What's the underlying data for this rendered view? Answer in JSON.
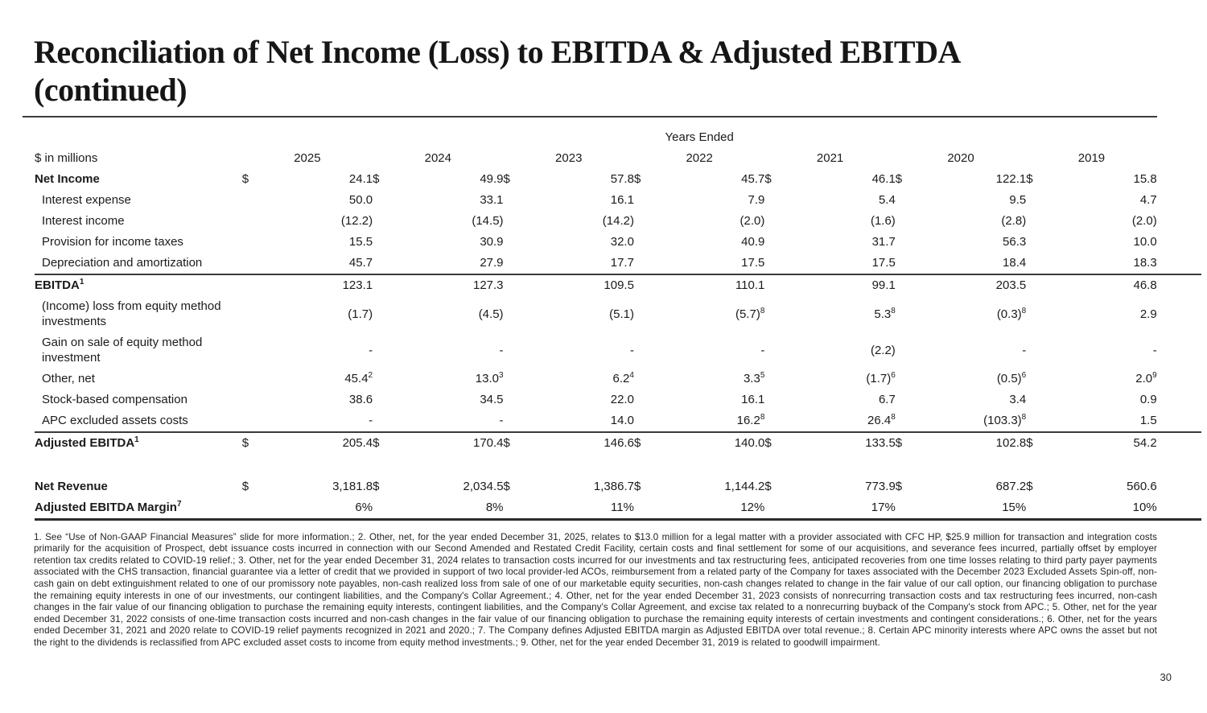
{
  "title": "Reconciliation of Net Income (Loss) to EBITDA & Adjusted EBITDA\n(continued)",
  "table": {
    "years_ended_label": "Years Ended",
    "unit_label": "$ in millions",
    "currency_symbol": "$",
    "years": [
      "2025",
      "2024",
      "2023",
      "2022",
      "2021",
      "2020",
      "2019"
    ],
    "rows": [
      {
        "label": "Net Income",
        "bold": true,
        "dollar": true,
        "values": [
          "24.1",
          "49.9",
          "57.8",
          "45.7",
          "46.1",
          "122.1",
          "15.8"
        ]
      },
      {
        "label": "Interest expense",
        "indent": true,
        "values": [
          "50.0",
          "33.1",
          "16.1",
          "7.9",
          "5.4",
          "9.5",
          "4.7"
        ]
      },
      {
        "label": "Interest income",
        "indent": true,
        "values": [
          "(12.2)",
          "(14.5)",
          "(14.2)",
          "(2.0)",
          "(1.6)",
          "(2.8)",
          "(2.0)"
        ]
      },
      {
        "label": "Provision for income taxes",
        "indent": true,
        "values": [
          "15.5",
          "30.9",
          "32.0",
          "40.9",
          "31.7",
          "56.3",
          "10.0"
        ]
      },
      {
        "label": "Depreciation and amortization",
        "indent": true,
        "rule_below": true,
        "values": [
          "45.7",
          "27.9",
          "17.7",
          "17.5",
          "17.5",
          "18.4",
          "18.3"
        ]
      },
      {
        "label": "EBITDA^1",
        "bold": true,
        "values": [
          "123.1",
          "127.3",
          "109.5",
          "110.1",
          "99.1",
          "203.5",
          "46.8"
        ]
      },
      {
        "label": "(Income) loss from equity method investments",
        "indent": true,
        "values": [
          "(1.7)",
          "(4.5)",
          "(5.1)",
          "(5.7)^8",
          "5.3^8",
          "(0.3)^8",
          "2.9"
        ]
      },
      {
        "label": "Gain on sale of equity method investment",
        "indent": true,
        "values": [
          "-",
          "-",
          "-",
          "-",
          "(2.2)",
          "-",
          "-"
        ]
      },
      {
        "label": "Other, net",
        "indent": true,
        "values": [
          "45.4^2",
          "13.0^3",
          "6.2^4",
          "3.3^5",
          "(1.7)^6",
          "(0.5)^6",
          "2.0^9"
        ]
      },
      {
        "label": "Stock-based compensation",
        "indent": true,
        "values": [
          "38.6",
          "34.5",
          "22.0",
          "16.1",
          "6.7",
          "3.4",
          "0.9"
        ]
      },
      {
        "label": "APC excluded assets costs",
        "indent": true,
        "rule_below": true,
        "values": [
          "-",
          "-",
          "14.0",
          "16.2^8",
          "26.4^8",
          "(103.3)^8",
          "1.5"
        ]
      },
      {
        "label": "Adjusted EBITDA^1",
        "bold": true,
        "dollar": true,
        "values": [
          "205.4",
          "170.4",
          "146.6",
          "140.0",
          "133.5",
          "102.8",
          "54.2"
        ]
      },
      {
        "spacer": true
      },
      {
        "label": "Net Revenue",
        "bold": true,
        "dollar": true,
        "values": [
          "3,181.8",
          "2,034.5",
          "1,386.7",
          "1,144.2",
          "773.9",
          "687.2",
          "560.6"
        ]
      },
      {
        "label": "Adjusted EBITDA Margin^7",
        "bold": true,
        "rule_below_thick": true,
        "values": [
          "6%",
          "8%",
          "11%",
          "12%",
          "17%",
          "15%",
          "10%"
        ]
      }
    ]
  },
  "footnotes": "1. See “Use of Non-GAAP Financial Measures” slide for more information.; 2. Other, net, for the year ended December 31, 2025, relates to $13.0 million for a legal matter with a provider associated with CFC HP, $25.9 million for transaction and integration costs primarily for the acquisition of Prospect, debt issuance costs incurred in connection with our Second Amended and Restated Credit Facility, certain costs and final settlement for some of our acquisitions, and severance fees incurred, partially offset by employer retention tax credits related to COVID-19 relief.; 3. Other, net for the year ended December 31, 2024 relates to transaction costs incurred for our investments and tax restructuring fees, anticipated recoveries from one time losses relating to third party payer payments associated with the CHS transaction, financial guarantee via a letter of credit that we provided in support of two local provider-led ACOs, reimbursement from a related party of the Company for taxes associated with the December 2023 Excluded Assets Spin-off, non-cash gain on debt extinguishment related to one of our promissory note payables, non-cash realized loss from sale of one of our marketable equity securities, non-cash changes related to change in the fair value of our call option, our financing obligation to purchase the remaining equity interests in one of our investments, our contingent liabilities, and the Company's Collar Agreement.; 4. Other, net for the year ended December 31, 2023 consists of nonrecurring transaction costs and tax restructuring fees incurred, non-cash changes in the fair value of our financing obligation to purchase the remaining equity interests, contingent liabilities, and the Company's Collar Agreement, and excise tax related to a nonrecurring buyback of the Company's stock from APC.; 5. Other, net for the year ended December 31, 2022 consists of one-time transaction costs incurred and non-cash changes in the fair value of our financing obligation to purchase the remaining equity interests of certain investments and contingent considerations.; 6. Other, net for the years ended December 31, 2021 and 2020 relate to COVID-19 relief payments recognized in 2021 and 2020.; 7. The Company defines Adjusted EBITDA margin as Adjusted EBITDA over total revenue.; 8. Certain APC minority interests where APC owns the asset but not the right to the dividends is reclassified from APC excluded asset costs to income from equity method investments.; 9. Other, net for the year ended December 31, 2019 is related to goodwill impairment.",
  "page_number": "30"
}
